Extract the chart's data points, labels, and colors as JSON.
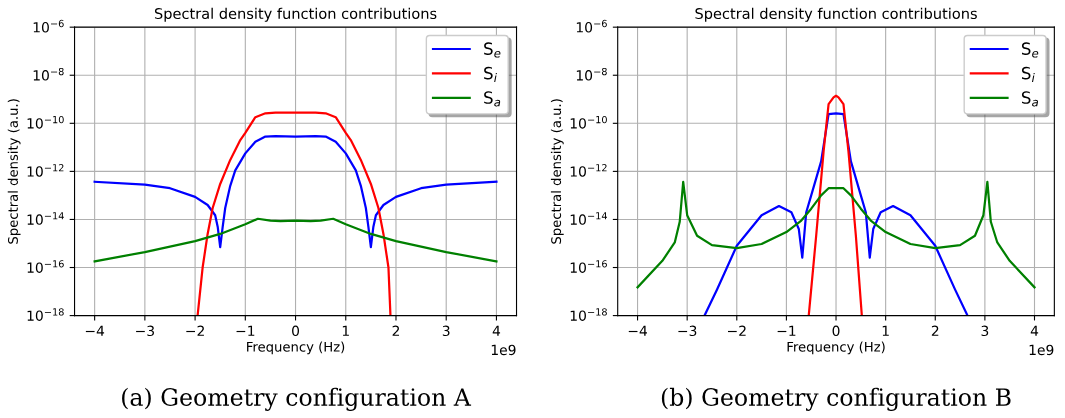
{
  "chart_data": [
    {
      "type": "line",
      "title": "Spectral density function contributions",
      "xlabel": "Frequency (Hz)",
      "ylabel": "Spectral density (a.u.)",
      "log": "y",
      "grid": true,
      "legend": "top right",
      "xlim": [
        -4.4,
        4.4
      ],
      "xticks": [
        {
          "value": -4,
          "label": "−4"
        },
        {
          "value": -3,
          "label": "−3"
        },
        {
          "value": -2,
          "label": "−2"
        },
        {
          "value": -1,
          "label": "−1"
        },
        0,
        1,
        2,
        3,
        4
      ],
      "ylim": [
        1e-18,
        1e-06
      ],
      "yticks": [
        {
          "value": 1e-18,
          "label": "10$^{−18}$"
        },
        {
          "value": 1e-16,
          "label": "10$^{−16}$"
        },
        {
          "value": 1e-14,
          "label": "10$^{−14}$"
        },
        {
          "value": 1e-12,
          "label": "10$^{−12}$"
        },
        {
          "value": 1e-10,
          "label": "10$^{−10}$"
        },
        {
          "value": 1e-08,
          "label": "10$^{−8}$"
        },
        {
          "value": 1e-06,
          "label": "10$^{−6}$"
        }
      ],
      "annotations": [
        "1e9",
        "(a) Geometry configuration A"
      ],
      "series": [
        {
          "name": "S$_{e}$",
          "color": "#0000ff",
          "x": [
            -4,
            -3,
            -2.5,
            -2,
            -1.75,
            -1.6,
            -1.55,
            -1.5,
            -1.45,
            -1.4,
            -1.3,
            -1.2,
            -1,
            -0.8,
            -0.6,
            -0.4,
            0,
            0.4,
            0.6,
            0.8,
            1,
            1.2,
            1.3,
            1.4,
            1.45,
            1.5,
            1.55,
            1.6,
            1.75,
            2,
            2.5,
            3,
            4
          ],
          "values": [
            3.7e-13,
            2.8e-13,
            2e-13,
            8.7e-14,
            4e-14,
            1.5e-14,
            5e-15,
            7e-16,
            5e-15,
            3e-14,
            2.5e-13,
            1.1e-12,
            5.6e-12,
            1.7e-11,
            2.8e-11,
            2.9e-11,
            2.8e-11,
            2.9e-11,
            2.8e-11,
            1.7e-11,
            5.6e-12,
            1.1e-12,
            2.5e-13,
            3e-14,
            5e-15,
            7e-16,
            5e-15,
            1.5e-14,
            4e-14,
            8.7e-14,
            2e-13,
            2.8e-13,
            3.7e-13
          ]
        },
        {
          "name": "S$_{i}$",
          "color": "#ff0000",
          "x": [
            -1.95,
            -1.85,
            -1.75,
            -1.65,
            -1.5,
            -1.3,
            -1.1,
            -1,
            -0.8,
            -0.6,
            -0.4,
            0,
            0.4,
            0.6,
            0.8,
            1,
            1.1,
            1.3,
            1.5,
            1.65,
            1.75,
            1.85,
            1.89
          ],
          "values": [
            1e-18,
            1e-16,
            2.5e-15,
            3e-14,
            3e-13,
            3e-12,
            2e-11,
            4e-11,
            1.8e-10,
            2.6e-10,
            2.8e-10,
            2.8e-10,
            2.8e-10,
            2.6e-10,
            1.8e-10,
            4e-11,
            2e-11,
            3e-12,
            3e-13,
            3e-14,
            2.5e-15,
            1e-16,
            1e-18
          ]
        },
        {
          "name": "S$_{a}$",
          "color": "#008000",
          "x": [
            -4,
            -3,
            -2,
            -1.5,
            -1,
            -0.75,
            -0.5,
            -0.3,
            0,
            0.3,
            0.5,
            0.75,
            1,
            1.5,
            2,
            3,
            4
          ],
          "values": [
            1.8e-16,
            4.4e-16,
            1.26e-15,
            2.5e-15,
            6.3e-15,
            1.07e-14,
            9e-15,
            8.5e-15,
            9e-15,
            8.5e-15,
            9e-15,
            1.07e-14,
            6.3e-15,
            2.5e-15,
            1.26e-15,
            4.4e-16,
            1.8e-16
          ]
        }
      ]
    },
    {
      "type": "line",
      "title": "Spectral density function contributions",
      "xlabel": "Frequency (Hz)",
      "ylabel": "Spectral density (a.u.)",
      "log": "y",
      "grid": true,
      "legend": "top right",
      "xlim": [
        -4.4,
        4.4
      ],
      "xticks": [
        {
          "value": -4,
          "label": "−4"
        },
        {
          "value": -3,
          "label": "−3"
        },
        {
          "value": -2,
          "label": "−2"
        },
        {
          "value": -1,
          "label": "−1"
        },
        0,
        1,
        2,
        3,
        4
      ],
      "ylim": [
        1e-18,
        1e-06
      ],
      "yticks": [
        {
          "value": 1e-18,
          "label": "10$^{−18}$"
        },
        {
          "value": 1e-16,
          "label": "10$^{−16}$"
        },
        {
          "value": 1e-14,
          "label": "10$^{−14}$"
        },
        {
          "value": 1e-12,
          "label": "10$^{−12}$"
        },
        {
          "value": 1e-10,
          "label": "10$^{−10}$"
        },
        {
          "value": 1e-08,
          "label": "10$^{−8}$"
        },
        {
          "value": 1e-06,
          "label": "10$^{−6}$"
        }
      ],
      "annotations": [
        "1e9",
        "(b) Geometry configuration B"
      ],
      "series": [
        {
          "name": "S$_{e}$",
          "color": "#0000ff",
          "x": [
            -2.65,
            -2.4,
            -2,
            -1.5,
            -1.15,
            -0.9,
            -0.75,
            -0.68,
            -0.6,
            -0.5,
            -0.3,
            -0.15,
            0,
            0.15,
            0.3,
            0.5,
            0.6,
            0.68,
            0.75,
            0.9,
            1.15,
            1.5,
            2,
            2.4,
            2.65
          ],
          "values": [
            1e-18,
            1.2e-17,
            8e-16,
            1.5e-14,
            3.6e-14,
            2e-14,
            4e-15,
            2.6e-16,
            2e-14,
            1e-13,
            2.6e-12,
            2.4e-10,
            2.6e-10,
            2.4e-10,
            2.6e-12,
            1e-13,
            2e-14,
            2.6e-16,
            4e-15,
            2e-14,
            3.6e-14,
            1.5e-14,
            8e-16,
            1.2e-17,
            1e-18
          ]
        },
        {
          "name": "S$_{i}$",
          "color": "#ff0000",
          "x": [
            -0.55,
            -0.4,
            -0.25,
            -0.15,
            -0.05,
            0,
            0.05,
            0.15,
            0.25,
            0.4,
            0.52
          ],
          "values": [
            1e-18,
            2.1e-15,
            7e-12,
            6.3e-10,
            1.2e-09,
            1.4e-09,
            1.2e-09,
            6.3e-10,
            7e-12,
            2.1e-15,
            1e-18
          ]
        },
        {
          "name": "S$_{a}$",
          "color": "#008000",
          "x": [
            -4,
            -3.5,
            -3.25,
            -3.15,
            -3.08,
            -3,
            -2.8,
            -2.5,
            -2,
            -1.5,
            -1,
            -0.7,
            -0.5,
            -0.3,
            -0.15,
            0,
            0.15,
            0.3,
            0.5,
            0.7,
            1,
            1.5,
            2,
            2.5,
            2.8,
            2.97,
            3.05,
            3.12,
            3.25,
            3.5,
            4
          ],
          "values": [
            1.5e-17,
            1.9e-16,
            1.1e-15,
            8e-15,
            3.7e-13,
            1.5e-14,
            2.1e-15,
            8.5e-16,
            6.4e-16,
            9.5e-16,
            3e-15,
            9e-15,
            2.8e-14,
            1e-13,
            2e-13,
            2e-13,
            2e-13,
            1e-13,
            2.8e-14,
            9e-15,
            3e-15,
            9.5e-16,
            6.4e-16,
            8.5e-16,
            2.1e-15,
            1.5e-14,
            3.7e-13,
            8e-15,
            1.1e-15,
            1.9e-16,
            1.5e-17
          ]
        }
      ]
    }
  ]
}
